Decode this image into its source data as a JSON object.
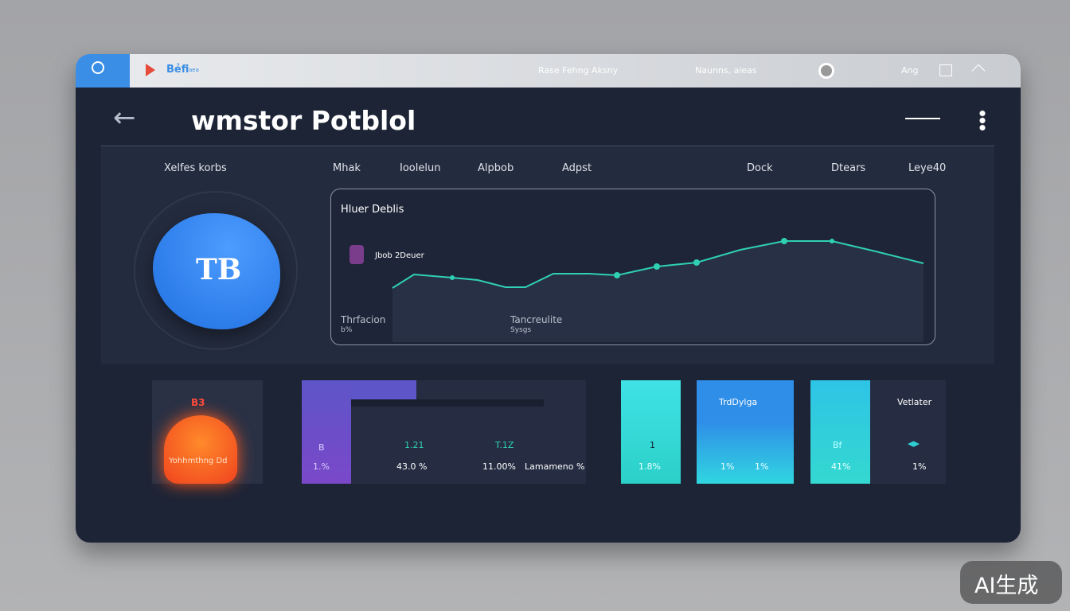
{
  "top_bar": {
    "app_name": "Bẻfi",
    "app_sub": "aea",
    "links": [
      "Rase Fehng Aksny",
      "Naunns, aieas"
    ],
    "lang": "Ang"
  },
  "header": {
    "title": "wmstor Potblol"
  },
  "tabs": [
    "Xelfes korbs",
    "Mhak",
    "Ioolelun",
    "Alpbob",
    "Adpst",
    "Dock",
    "Dtears",
    "Leye40"
  ],
  "avatar": {
    "label": "TB"
  },
  "activity": {
    "title": "Hluer Deblis",
    "legend": "Jbob 2Deuer",
    "footer": [
      {
        "label": "Thrfacion",
        "sub": "b%"
      },
      {
        "label": "Tancreulite",
        "sub": "Sysgs"
      }
    ]
  },
  "cards": [
    {
      "title": "B3",
      "caption": "Yohhmthng Dd"
    },
    {
      "badge": "B",
      "metrics": [
        {
          "label": "1.21",
          "value": "43.0 %"
        },
        {
          "label": "T.1Z",
          "value": "11.00%"
        }
      ],
      "left_value": "1.%",
      "note": "Lamameno %"
    },
    {
      "mark": "1",
      "value": "1.8%"
    },
    {
      "title": "TrdDylga",
      "values": [
        "1%",
        "1%"
      ]
    },
    {
      "badge": "Bf",
      "value": "41%",
      "title": "Vetlater",
      "right_value": "1%"
    }
  ],
  "watermark": "AI生成"
}
